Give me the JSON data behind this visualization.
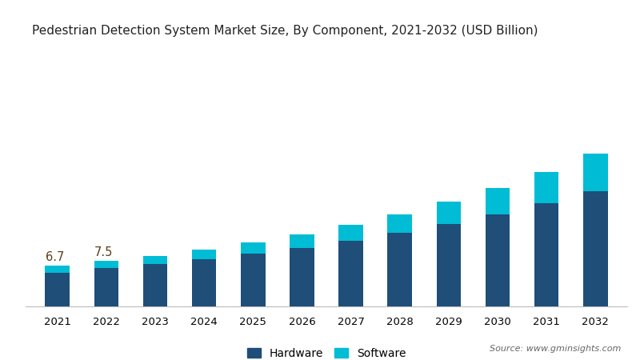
{
  "title": "Pedestrian Detection System Market Size, By Component, 2021-2032 (USD Billion)",
  "years": [
    2021,
    2022,
    2023,
    2024,
    2025,
    2026,
    2027,
    2028,
    2029,
    2030,
    2031,
    2032
  ],
  "hardware": [
    5.6,
    6.3,
    7.0,
    7.8,
    8.7,
    9.7,
    10.9,
    12.2,
    13.7,
    15.3,
    17.1,
    19.2
  ],
  "software": [
    1.1,
    1.2,
    1.4,
    1.6,
    1.9,
    2.2,
    2.6,
    3.1,
    3.7,
    4.4,
    5.2,
    6.2
  ],
  "hardware_color": "#1f4e79",
  "software_color": "#00bcd4",
  "background_color": "#ffffff",
  "annotation_2021": "6.7",
  "annotation_2022": "7.5",
  "annotation_color": "#5a3e1b",
  "legend_labels": [
    "Hardware",
    "Software"
  ],
  "source_text": "Source: www.gminsights.com",
  "bar_width": 0.5,
  "ylim": [
    0,
    42
  ],
  "title_fontsize": 11,
  "tick_fontsize": 9.5,
  "legend_fontsize": 10,
  "source_fontsize": 8,
  "annotation_fontsize": 10.5
}
